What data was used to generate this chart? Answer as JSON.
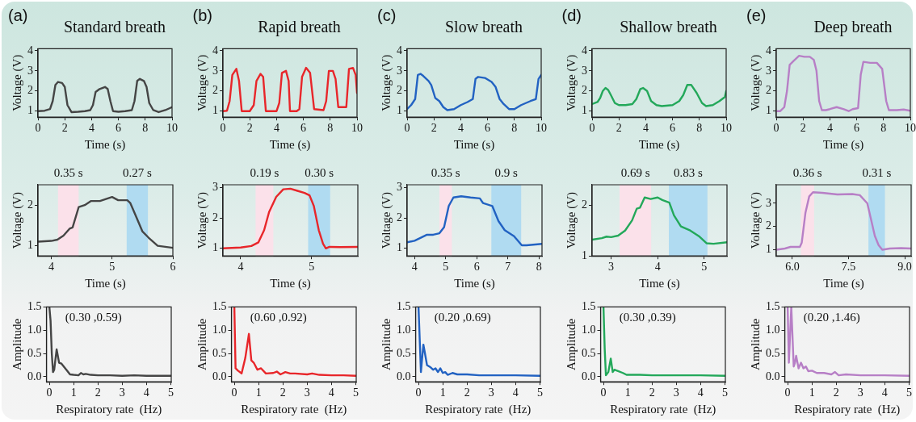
{
  "chart_data": [
    {
      "type": "line",
      "title": "Standard breath",
      "annotations": [
        "(a)"
      ],
      "xlabel": "Time (s)",
      "ylabel": "Voltage (V)",
      "xlim": [
        0,
        10
      ],
      "ylim": [
        0.7,
        4.1
      ],
      "xticks": [
        0,
        2,
        4,
        6,
        8,
        10
      ],
      "yticks": [
        1,
        2,
        3,
        4
      ],
      "grid": false,
      "marker": "none",
      "series": [
        {
          "color": "#454545",
          "x": [
            0,
            0.5,
            0.9,
            1.1,
            1.3,
            1.5,
            1.8,
            2.0,
            2.2,
            2.5,
            3,
            3.5,
            3.9,
            4.1,
            4.3,
            4.6,
            5.0,
            5.2,
            5.4,
            5.6,
            6,
            6.5,
            7,
            7.2,
            7.4,
            7.6,
            7.9,
            8.1,
            8.3,
            8.6,
            9,
            9.5,
            10
          ],
          "values": [
            1.0,
            1.02,
            1.1,
            1.5,
            2.3,
            2.45,
            2.4,
            2.2,
            1.3,
            0.95,
            0.97,
            1.0,
            1.05,
            1.3,
            1.95,
            2.1,
            2.2,
            2.1,
            1.5,
            1.0,
            0.97,
            1.0,
            1.05,
            1.5,
            2.5,
            2.6,
            2.5,
            2.2,
            1.4,
            1.05,
            0.95,
            1.05,
            1.2
          ]
        }
      ]
    },
    {
      "type": "line",
      "xlabel": "Time (s)",
      "ylabel": "Voltage (V)",
      "xlim": [
        3.78,
        6
      ],
      "ylim": [
        0.75,
        2.5
      ],
      "xticks": [
        4,
        5,
        6
      ],
      "yticks": [
        1,
        2
      ],
      "grid": false,
      "marker": "none",
      "bands": [
        {
          "axis": "x",
          "from": 4.11,
          "to": 4.45,
          "label": "0.35 s",
          "color": "#fbe1ea"
        },
        {
          "axis": "x",
          "from": 5.24,
          "to": 5.59,
          "label": "0.27 s",
          "color": "#b0dbf1"
        }
      ],
      "series": [
        {
          "color": "#454545",
          "x": [
            3.78,
            4,
            4.1,
            4.2,
            4.3,
            4.35,
            4.45,
            4.55,
            4.65,
            4.8,
            4.9,
            5.0,
            5.1,
            5.25,
            5.3,
            5.4,
            5.5,
            5.6,
            5.75,
            5.9,
            6.0
          ],
          "values": [
            1.1,
            1.12,
            1.15,
            1.25,
            1.42,
            1.45,
            1.95,
            2.0,
            2.1,
            2.1,
            2.15,
            2.2,
            2.12,
            2.12,
            2.05,
            1.7,
            1.35,
            1.2,
            1.0,
            0.97,
            0.95
          ]
        }
      ]
    },
    {
      "type": "line",
      "annotations": [
        "(0.30 ,0.59)"
      ],
      "xlabel": "Respiratory rate  (Hz)",
      "ylabel": "Amplitude",
      "xlim": [
        -0.12,
        5.02
      ],
      "ylim": [
        -0.11,
        1.5
      ],
      "xticks": [
        0,
        1,
        2,
        3,
        4,
        5
      ],
      "yticks": [
        {
          "value": 0,
          "label": "0.0"
        },
        {
          "value": 0.5,
          "label": "0.5"
        },
        {
          "value": 1,
          "label": "1.0"
        },
        {
          "value": 1.5,
          "label": "1.5"
        }
      ],
      "grid": false,
      "marker": "none",
      "series": [
        {
          "color": "#454545",
          "x": [
            0,
            0.05,
            0.1,
            0.15,
            0.2,
            0.3,
            0.4,
            0.5,
            0.7,
            0.85,
            1,
            1.2,
            1.3,
            1.4,
            1.5,
            1.7,
            2,
            2.5,
            3,
            3.5,
            4,
            4.5,
            5
          ],
          "values": [
            1.5,
            1.2,
            0.5,
            0.1,
            0.15,
            0.59,
            0.3,
            0.28,
            0.15,
            0.05,
            0.04,
            0.03,
            0.08,
            0.05,
            0.06,
            0.04,
            0.03,
            0.03,
            0.02,
            0.03,
            0.02,
            0.02,
            0.02
          ]
        }
      ]
    },
    {
      "type": "line",
      "title": "Rapid breath",
      "annotations": [
        "(b)"
      ],
      "xlabel": "Time (s)",
      "ylabel": "Voltage (V)",
      "xlim": [
        0,
        10
      ],
      "ylim": [
        0.7,
        4.1
      ],
      "xticks": [
        0,
        2,
        4,
        6,
        8,
        10
      ],
      "yticks": [
        1,
        2,
        3,
        4
      ],
      "grid": false,
      "marker": "none",
      "series": [
        {
          "color": "#e8262a",
          "x": [
            0,
            0.3,
            0.5,
            0.7,
            1.0,
            1.2,
            1.4,
            2,
            2.3,
            2.5,
            2.8,
            3.0,
            3.2,
            4,
            4.2,
            4.4,
            4.7,
            4.9,
            5.0,
            5.5,
            5.7,
            5.9,
            6.2,
            6.5,
            6.8,
            7.5,
            7.7,
            7.9,
            8.2,
            8.4,
            8.6,
            9.2,
            9.4,
            9.7,
            9.9,
            10
          ],
          "values": [
            1.0,
            1.02,
            1.5,
            2.8,
            3.1,
            2.5,
            1.0,
            1.0,
            1.3,
            2.5,
            2.85,
            2.7,
            1.0,
            1.0,
            1.4,
            2.9,
            3.0,
            2.5,
            1.0,
            1.0,
            1.1,
            2.7,
            3.15,
            2.9,
            1.1,
            1.05,
            1.5,
            3.0,
            3.0,
            2.6,
            1.2,
            1.2,
            3.1,
            3.15,
            2.8,
            1.9
          ]
        }
      ]
    },
    {
      "type": "line",
      "xlabel": "Time (s)",
      "ylabel": "Voltage (V)",
      "xlim": [
        3.75,
        5.65
      ],
      "ylim": [
        0.75,
        3.1
      ],
      "xticks": [
        4,
        5
      ],
      "yticks": [
        1,
        2,
        3
      ],
      "grid": false,
      "marker": "none",
      "bands": [
        {
          "axis": "x",
          "from": 4.21,
          "to": 4.46,
          "label": "0.19 s",
          "color": "#fbe1ea"
        },
        {
          "axis": "x",
          "from": 4.95,
          "to": 5.26,
          "label": "0.30 s",
          "color": "#b0dbf1"
        }
      ],
      "series": [
        {
          "color": "#e8262a",
          "x": [
            3.75,
            4.0,
            4.15,
            4.25,
            4.33,
            4.4,
            4.5,
            4.6,
            4.7,
            4.8,
            4.9,
            4.97,
            5.03,
            5.1,
            5.16,
            5.2,
            5.25,
            5.4,
            5.65
          ],
          "values": [
            1.0,
            1.03,
            1.08,
            1.2,
            1.6,
            2.2,
            2.7,
            2.95,
            2.97,
            2.9,
            2.83,
            2.75,
            2.4,
            1.6,
            1.15,
            1.0,
            1.05,
            1.04,
            1.05
          ]
        }
      ]
    },
    {
      "type": "line",
      "annotations": [
        "(0.60 ,0.92)"
      ],
      "xlabel": "Respiratory rate  (Hz)",
      "ylabel": "Amplitude",
      "xlim": [
        -0.12,
        5.02
      ],
      "ylim": [
        -0.11,
        1.5
      ],
      "xticks": [
        0,
        1,
        2,
        3,
        4,
        5
      ],
      "yticks": [
        {
          "value": 0,
          "label": "0.0"
        },
        {
          "value": 0.5,
          "label": "0.5"
        },
        {
          "value": 1,
          "label": "1.0"
        },
        {
          "value": 1.5,
          "label": "1.5"
        }
      ],
      "grid": false,
      "marker": "none",
      "series": [
        {
          "color": "#e8262a",
          "x": [
            0,
            0.05,
            0.15,
            0.3,
            0.45,
            0.6,
            0.7,
            0.8,
            0.95,
            1.1,
            1.3,
            1.6,
            1.75,
            1.9,
            2.1,
            2.3,
            2.5,
            3,
            3.2,
            3.5,
            4,
            4.5,
            5
          ],
          "values": [
            1.5,
            0.18,
            0.13,
            0.07,
            0.4,
            0.92,
            0.35,
            0.3,
            0.15,
            0.18,
            0.07,
            0.08,
            0.11,
            0.05,
            0.1,
            0.07,
            0.07,
            0.05,
            0.07,
            0.04,
            0.03,
            0.03,
            0.02
          ]
        }
      ]
    },
    {
      "type": "line",
      "title": "Slow breath",
      "annotations": [
        "(c)"
      ],
      "xlabel": "Time (s)",
      "ylabel": "Voltage (V)",
      "xlim": [
        0,
        10
      ],
      "ylim": [
        0.7,
        4.1
      ],
      "xticks": [
        0,
        2,
        4,
        6,
        8,
        10
      ],
      "yticks": [
        1,
        2,
        3,
        4
      ],
      "grid": false,
      "marker": "none",
      "series": [
        {
          "color": "#2262c2",
          "x": [
            0,
            0.3,
            0.6,
            0.8,
            1.0,
            1.2,
            1.6,
            1.8,
            2.1,
            2.4,
            2.7,
            3.0,
            3.5,
            4,
            4.5,
            4.9,
            5.1,
            5.3,
            5.8,
            6.3,
            6.6,
            6.9,
            7.2,
            7.6,
            8,
            8.5,
            9.2,
            9.6,
            9.8,
            10
          ],
          "values": [
            1.1,
            1.3,
            1.6,
            2.8,
            2.85,
            2.75,
            2.5,
            2.3,
            1.65,
            1.5,
            1.2,
            1.05,
            1.1,
            1.3,
            1.45,
            1.6,
            2.6,
            2.7,
            2.65,
            2.45,
            2.2,
            1.6,
            1.35,
            1.1,
            1.1,
            1.3,
            1.5,
            1.6,
            2.6,
            2.8
          ]
        }
      ]
    },
    {
      "type": "line",
      "xlabel": "Time (s)",
      "ylabel": "Voltage (V)",
      "xlim": [
        3.76,
        8.1
      ],
      "ylim": [
        0.75,
        3.1
      ],
      "xticks": [
        4,
        5,
        6,
        7,
        8
      ],
      "yticks": [
        1,
        2,
        3
      ],
      "grid": false,
      "marker": "none",
      "bands": [
        {
          "axis": "x",
          "from": 4.8,
          "to": 5.2,
          "label": "0.35 s",
          "color": "#fbe1ea"
        },
        {
          "axis": "x",
          "from": 6.47,
          "to": 7.43,
          "label": "0.9 s",
          "color": "#b0dbf1"
        }
      ],
      "series": [
        {
          "color": "#2262c2",
          "x": [
            3.76,
            4,
            4.2,
            4.4,
            4.6,
            4.8,
            4.95,
            5.1,
            5.25,
            5.5,
            5.8,
            6.1,
            6.2,
            6.5,
            6.7,
            6.9,
            7.2,
            7.45,
            7.6,
            8.1
          ],
          "values": [
            1.2,
            1.25,
            1.35,
            1.45,
            1.45,
            1.5,
            1.7,
            2.4,
            2.68,
            2.72,
            2.68,
            2.65,
            2.5,
            2.4,
            1.9,
            1.6,
            1.4,
            1.1,
            1.1,
            1.15
          ]
        }
      ]
    },
    {
      "type": "line",
      "annotations": [
        "(0.20 ,0.69)"
      ],
      "xlabel": "Respiratory rate  (Hz)",
      "ylabel": "Amplitude",
      "xlim": [
        -0.12,
        5.02
      ],
      "ylim": [
        -0.11,
        1.5
      ],
      "xticks": [
        0,
        1,
        2,
        3,
        4,
        5
      ],
      "yticks": [
        {
          "value": 0,
          "label": "0.0"
        },
        {
          "value": 0.5,
          "label": "0.5"
        },
        {
          "value": 1,
          "label": "1.0"
        },
        {
          "value": 1.5,
          "label": "1.5"
        }
      ],
      "grid": false,
      "marker": "none",
      "series": [
        {
          "color": "#2262c2",
          "x": [
            0,
            0.05,
            0.1,
            0.2,
            0.25,
            0.35,
            0.5,
            0.6,
            0.7,
            0.8,
            0.9,
            1.0,
            1.1,
            1.2,
            1.4,
            1.6,
            2,
            2.5,
            3,
            4,
            5
          ],
          "values": [
            1.5,
            0.8,
            0.1,
            0.69,
            0.55,
            0.25,
            0.2,
            0.15,
            0.18,
            0.1,
            0.18,
            0.08,
            0.1,
            0.04,
            0.08,
            0.05,
            0.05,
            0.03,
            0.03,
            0.03,
            0.02
          ]
        }
      ]
    },
    {
      "type": "line",
      "title": "Shallow breath",
      "annotations": [
        "(d)"
      ],
      "xlabel": "Time (s)",
      "ylabel": "Voltage (V)",
      "xlim": [
        0,
        10
      ],
      "ylim": [
        0.7,
        4.1
      ],
      "xticks": [
        0,
        2,
        4,
        6,
        8,
        10
      ],
      "yticks": [
        1,
        2,
        3,
        4
      ],
      "grid": false,
      "marker": "none",
      "series": [
        {
          "color": "#23a85a",
          "x": [
            0,
            0.4,
            0.6,
            0.8,
            1.0,
            1.2,
            1.4,
            1.7,
            2,
            2.5,
            3.0,
            3.3,
            3.6,
            3.8,
            4.1,
            4.4,
            4.8,
            5.2,
            6,
            6.5,
            6.8,
            7.1,
            7.4,
            7.8,
            8.2,
            8.5,
            9,
            9.5,
            9.9,
            10
          ],
          "values": [
            1.35,
            1.45,
            1.65,
            2.0,
            2.15,
            2.05,
            1.8,
            1.4,
            1.3,
            1.3,
            1.35,
            1.6,
            2.1,
            2.15,
            2.0,
            1.5,
            1.3,
            1.25,
            1.3,
            1.5,
            1.8,
            2.3,
            2.3,
            1.9,
            1.4,
            1.25,
            1.3,
            1.5,
            1.7,
            2.0
          ]
        }
      ]
    },
    {
      "type": "line",
      "xlabel": "Time (s)",
      "ylabel": "Voltage (V)",
      "xlim": [
        2.59,
        5.49
      ],
      "ylim": [
        1,
        2.4
      ],
      "xticks": [
        3,
        4,
        5
      ],
      "yticks": [
        1,
        2
      ],
      "grid": false,
      "marker": "none",
      "bands": [
        {
          "axis": "x",
          "from": 3.18,
          "to": 3.86,
          "label": "0.69 s",
          "color": "#fbe1ea"
        },
        {
          "axis": "x",
          "from": 4.24,
          "to": 5.07,
          "label": "0.83 s",
          "color": "#b0dbf1"
        }
      ],
      "series": [
        {
          "color": "#23a85a",
          "x": [
            2.59,
            2.8,
            2.9,
            3.0,
            3.15,
            3.3,
            3.45,
            3.55,
            3.62,
            3.72,
            3.85,
            4.0,
            4.1,
            4.25,
            4.35,
            4.5,
            4.7,
            4.9,
            5.05,
            5.2,
            5.49
          ],
          "values": [
            1.32,
            1.35,
            1.38,
            1.37,
            1.4,
            1.5,
            1.7,
            1.93,
            1.95,
            2.15,
            2.12,
            2.15,
            2.1,
            2.05,
            1.8,
            1.58,
            1.5,
            1.38,
            1.25,
            1.24,
            1.27
          ]
        }
      ]
    },
    {
      "type": "line",
      "annotations": [
        "(0.30 ,0.39)"
      ],
      "xlabel": "Respiratory rate  (Hz)",
      "ylabel": "Amplitude",
      "xlim": [
        -0.12,
        5.02
      ],
      "ylim": [
        -0.11,
        1.5
      ],
      "xticks": [
        0,
        1,
        2,
        3,
        4,
        5
      ],
      "yticks": [
        {
          "value": 0,
          "label": "0.0"
        },
        {
          "value": 0.5,
          "label": "0.5"
        },
        {
          "value": 1,
          "label": "1.0"
        },
        {
          "value": 1.5,
          "label": "1.5"
        }
      ],
      "grid": false,
      "marker": "none",
      "series": [
        {
          "color": "#23a85a",
          "x": [
            0,
            0.05,
            0.1,
            0.2,
            0.3,
            0.38,
            0.45,
            0.6,
            0.8,
            0.95,
            1.5,
            2,
            3,
            4,
            5
          ],
          "values": [
            1.5,
            0.6,
            0.03,
            0.1,
            0.39,
            0.1,
            0.15,
            0.12,
            0.08,
            0.04,
            0.04,
            0.03,
            0.03,
            0.03,
            0.02
          ]
        }
      ]
    },
    {
      "type": "line",
      "title": "Deep breath",
      "annotations": [
        "(e)"
      ],
      "xlabel": "Time (s)",
      "ylabel": "Voltage (V)",
      "xlim": [
        0,
        10
      ],
      "ylim": [
        0.7,
        4.1
      ],
      "xticks": [
        0,
        2,
        4,
        6,
        8,
        10
      ],
      "yticks": [
        1,
        2,
        3,
        4
      ],
      "grid": false,
      "marker": "none",
      "series": [
        {
          "color": "#b77fc6",
          "x": [
            0,
            0.3,
            0.6,
            0.8,
            1.0,
            1.3,
            1.7,
            2.1,
            2.5,
            2.8,
            3.0,
            3.2,
            3.4,
            3.7,
            4.0,
            4.5,
            5.0,
            5.4,
            5.7,
            6.1,
            6.3,
            6.5,
            7,
            7.5,
            7.9,
            8.2,
            8.4,
            9,
            9.5,
            10
          ],
          "values": [
            1.0,
            1.0,
            1.2,
            2.0,
            3.3,
            3.5,
            3.75,
            3.7,
            3.7,
            3.55,
            3.0,
            1.5,
            1.05,
            1.05,
            1.1,
            1.2,
            1.1,
            1.0,
            1.1,
            1.15,
            2.8,
            3.45,
            3.4,
            3.4,
            3.1,
            1.5,
            1.05,
            1.05,
            1.08,
            1.02
          ]
        }
      ]
    },
    {
      "type": "line",
      "xlabel": "Time (s)",
      "ylabel": "Voltage (V)",
      "xlim": [
        5.57,
        9.17
      ],
      "ylim": [
        0.73,
        3.8
      ],
      "xticks": [
        {
          "value": 6,
          "label": "6.0"
        },
        {
          "value": 7.5,
          "label": "7.5"
        },
        {
          "value": 9,
          "label": "9.0"
        }
      ],
      "yticks": [
        1,
        2,
        3
      ],
      "grid": false,
      "marker": "none",
      "bands": [
        {
          "axis": "x",
          "from": 6.23,
          "to": 6.58,
          "label": "0.36 s",
          "color": "#fbe1ea"
        },
        {
          "axis": "x",
          "from": 8.03,
          "to": 8.47,
          "label": "0.31 s",
          "color": "#b0dbf1"
        }
      ],
      "series": [
        {
          "color": "#b77fc6",
          "x": [
            5.57,
            5.8,
            5.95,
            6.2,
            6.25,
            6.35,
            6.45,
            6.55,
            6.8,
            7.2,
            7.6,
            7.8,
            8.0,
            8.1,
            8.2,
            8.3,
            8.4,
            8.6,
            8.9,
            9.17
          ],
          "values": [
            1.0,
            1.05,
            1.12,
            1.12,
            1.3,
            2.6,
            3.3,
            3.48,
            3.45,
            3.38,
            3.4,
            3.35,
            3.0,
            2.3,
            1.6,
            1.2,
            1.0,
            1.05,
            1.07,
            1.05
          ]
        }
      ]
    },
    {
      "type": "line",
      "annotations": [
        "(0.20 ,1.46)"
      ],
      "xlabel": "Respiratory rate  (Hz)",
      "ylabel": "Amplitude",
      "xlim": [
        -0.12,
        5.02
      ],
      "ylim": [
        -0.11,
        1.5
      ],
      "xticks": [
        0,
        1,
        2,
        3,
        4,
        5
      ],
      "yticks": [
        {
          "value": 0,
          "label": "0.0"
        },
        {
          "value": 0.5,
          "label": "0.5"
        },
        {
          "value": 1,
          "label": "1.0"
        },
        {
          "value": 1.5,
          "label": "1.5"
        }
      ],
      "grid": false,
      "marker": "none",
      "series": [
        {
          "color": "#b77fc6",
          "x": [
            0,
            0.05,
            0.15,
            0.25,
            0.3,
            0.35,
            0.45,
            0.55,
            0.65,
            0.75,
            0.85,
            1.0,
            1.2,
            1.5,
            1.8,
            1.95,
            2.1,
            2.4,
            3,
            4,
            5
          ],
          "values": [
            1.5,
            0.3,
            1.5,
            0.22,
            0.3,
            0.45,
            0.18,
            0.3,
            0.18,
            0.22,
            0.12,
            0.13,
            0.08,
            0.08,
            0.05,
            0.1,
            0.03,
            0.05,
            0.03,
            0.03,
            0.02
          ]
        }
      ]
    }
  ]
}
